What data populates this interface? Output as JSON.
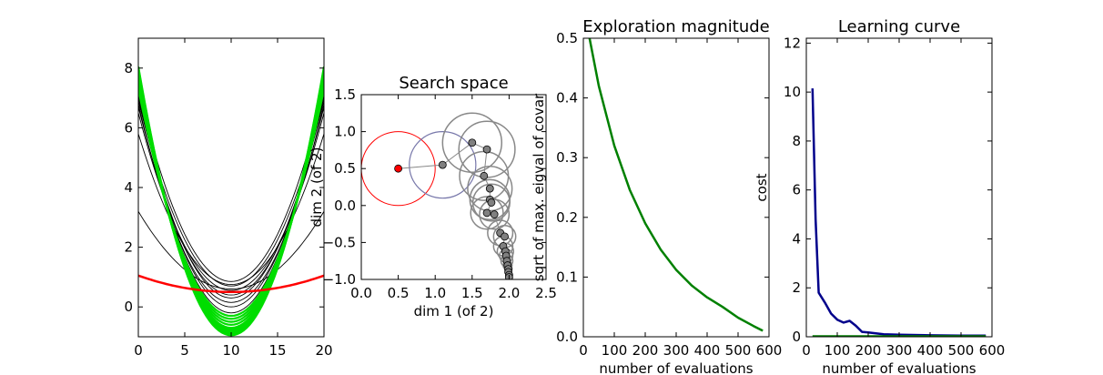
{
  "chart_data": [
    {
      "id": "rollouts",
      "type": "line",
      "title": "",
      "xlabel": "",
      "ylabel": "",
      "xlim": [
        0,
        20
      ],
      "ylim": [
        -1,
        9
      ],
      "xticks": [
        0,
        5,
        10,
        15,
        20
      ],
      "yticks": [
        0,
        2,
        4,
        6,
        8
      ],
      "grid": false,
      "x_center": 10,
      "series": [
        {
          "role": "initial-rollout",
          "color": "#000000",
          "curves": [
            {
              "y_at_center": 0.85,
              "y_at_ends": 7.2
            },
            {
              "y_at_center": 0.7,
              "y_at_ends": 6.9
            },
            {
              "y_at_center": 0.55,
              "y_at_ends": 6.5
            },
            {
              "y_at_center": 0.4,
              "y_at_ends": 6.7
            },
            {
              "y_at_center": 0.75,
              "y_at_ends": 5.8
            },
            {
              "y_at_center": 0.6,
              "y_at_ends": 3.2
            },
            {
              "y_at_center": 0.3,
              "y_at_ends": 7.0
            },
            {
              "y_at_center": 0.15,
              "y_at_ends": 6.8
            },
            {
              "y_at_center": 0.0,
              "y_at_ends": 7.1
            },
            {
              "y_at_center": -0.2,
              "y_at_ends": 7.3
            }
          ]
        },
        {
          "role": "converged-rollouts",
          "color": "#00dd00",
          "curves": [
            {
              "y_at_center": -0.3,
              "y_at_ends": 7.3
            },
            {
              "y_at_center": -0.4,
              "y_at_ends": 7.4
            },
            {
              "y_at_center": -0.5,
              "y_at_ends": 7.5
            },
            {
              "y_at_center": -0.6,
              "y_at_ends": 7.6
            },
            {
              "y_at_center": -0.7,
              "y_at_ends": 7.7
            },
            {
              "y_at_center": -0.75,
              "y_at_ends": 7.8
            },
            {
              "y_at_center": -0.8,
              "y_at_ends": 7.85
            },
            {
              "y_at_center": -0.85,
              "y_at_ends": 7.9
            },
            {
              "y_at_center": -0.9,
              "y_at_ends": 8.0
            },
            {
              "y_at_center": -0.95,
              "y_at_ends": 8.05
            }
          ]
        },
        {
          "role": "reference",
          "color": "#ff0000",
          "curves": [
            {
              "y_at_center": 0.5,
              "y_at_ends": 1.05
            }
          ]
        }
      ]
    },
    {
      "id": "search-space",
      "type": "scatter",
      "title": "Search space",
      "xlabel": "dim 1 (of 2)",
      "ylabel": "dim 2 (of 2)",
      "xlim": [
        0,
        2.5
      ],
      "ylim": [
        -1.0,
        1.5
      ],
      "xticks": [
        0.0,
        0.5,
        1.0,
        1.5,
        2.0,
        2.5
      ],
      "yticks": [
        -1.0,
        -0.5,
        0.0,
        0.5,
        1.0,
        1.5
      ],
      "xtick_labels": [
        "0.0",
        "0.5",
        "1.0",
        "1.5",
        "2.0",
        "2.5"
      ],
      "ytick_labels": [
        "−1.0",
        "−0.5",
        "0.0",
        "0.5",
        "1.0",
        "1.5"
      ],
      "grid": false,
      "initial": {
        "x": 0.5,
        "y": 0.5,
        "radius": 0.5,
        "color": "#ff0000"
      },
      "first_update": {
        "x": 1.1,
        "y": 0.55,
        "radius": 0.45,
        "color": "#7777aa"
      },
      "points": [
        {
          "x": 1.5,
          "y": 0.85,
          "r": 0.4
        },
        {
          "x": 1.7,
          "y": 0.76,
          "r": 0.38
        },
        {
          "x": 1.66,
          "y": 0.4,
          "r": 0.33
        },
        {
          "x": 1.74,
          "y": 0.23,
          "r": 0.3
        },
        {
          "x": 1.74,
          "y": 0.08,
          "r": 0.27
        },
        {
          "x": 1.76,
          "y": 0.04,
          "r": 0.25
        },
        {
          "x": 1.7,
          "y": -0.1,
          "r": 0.22
        },
        {
          "x": 1.8,
          "y": -0.12,
          "r": 0.2
        },
        {
          "x": 1.88,
          "y": -0.37,
          "r": 0.17
        },
        {
          "x": 1.94,
          "y": -0.42,
          "r": 0.15
        },
        {
          "x": 1.92,
          "y": -0.55,
          "r": 0.13
        },
        {
          "x": 1.95,
          "y": -0.62,
          "r": 0.11
        },
        {
          "x": 1.96,
          "y": -0.68,
          "r": 0.09
        },
        {
          "x": 1.97,
          "y": -0.75,
          "r": 0.08
        },
        {
          "x": 1.98,
          "y": -0.81,
          "r": 0.06
        },
        {
          "x": 1.99,
          "y": -0.86,
          "r": 0.05
        },
        {
          "x": 1.99,
          "y": -0.9,
          "r": 0.04
        },
        {
          "x": 2.0,
          "y": -0.94,
          "r": 0.03
        },
        {
          "x": 2.0,
          "y": -0.97,
          "r": 0.02
        }
      ]
    },
    {
      "id": "exploration-magnitude",
      "type": "line",
      "title": "Exploration magnitude",
      "xlabel": "number of evaluations",
      "ylabel": "sqrt of max. eigval of covar",
      "xlim": [
        0,
        600
      ],
      "ylim": [
        0,
        0.5
      ],
      "xticks": [
        0,
        100,
        200,
        300,
        400,
        500,
        600
      ],
      "yticks": [
        0.0,
        0.1,
        0.2,
        0.3,
        0.4,
        0.5
      ],
      "ytick_labels": [
        "0.0",
        "0.1",
        "0.2",
        "0.3",
        "0.4",
        "0.5"
      ],
      "grid": false,
      "series": [
        {
          "color": "#008000",
          "x": [
            20,
            50,
            100,
            150,
            200,
            250,
            300,
            350,
            400,
            450,
            500,
            550,
            580
          ],
          "y": [
            0.5,
            0.42,
            0.32,
            0.246,
            0.19,
            0.146,
            0.112,
            0.086,
            0.066,
            0.05,
            0.032,
            0.018,
            0.01
          ]
        }
      ]
    },
    {
      "id": "learning-curve",
      "type": "line",
      "title": "Learning curve",
      "xlabel": "number of evaluations",
      "ylabel": "cost",
      "xlim": [
        0,
        600
      ],
      "ylim": [
        0,
        12.2
      ],
      "xticks": [
        0,
        100,
        200,
        300,
        400,
        500,
        600
      ],
      "yticks": [
        0,
        2,
        4,
        6,
        8,
        10,
        12
      ],
      "grid": false,
      "series": [
        {
          "color": "#00008b",
          "x": [
            20,
            30,
            40,
            60,
            80,
            100,
            120,
            140,
            160,
            180,
            200,
            250,
            300,
            400,
            500,
            580
          ],
          "y": [
            10.15,
            4.8,
            1.8,
            1.4,
            0.95,
            0.7,
            0.58,
            0.65,
            0.45,
            0.2,
            0.18,
            0.1,
            0.08,
            0.06,
            0.05,
            0.05
          ]
        },
        {
          "color": "#008000",
          "x": [
            20,
            580
          ],
          "y": [
            0.02,
            0.02
          ]
        }
      ]
    }
  ]
}
